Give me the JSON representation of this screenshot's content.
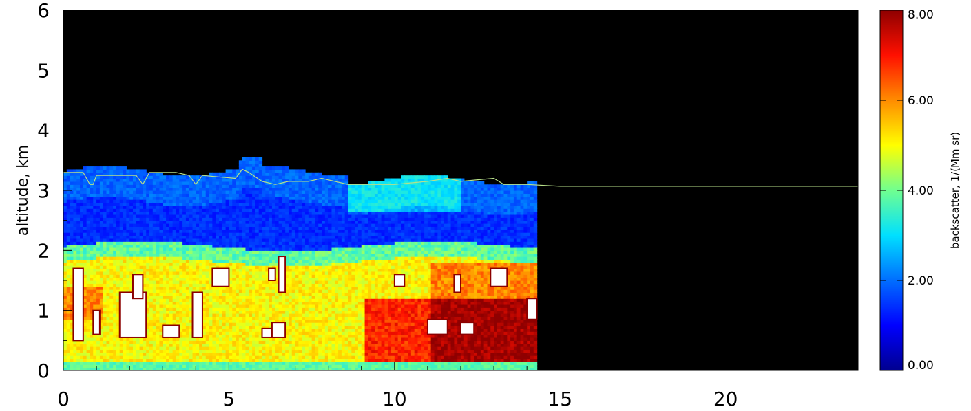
{
  "chart_data": {
    "type": "heatmap",
    "title": "",
    "xlabel": "",
    "ylabel": "altitude,  km",
    "xlim": [
      0,
      24
    ],
    "ylim": [
      0,
      6
    ],
    "x_ticks": [
      0,
      5,
      10,
      15,
      20
    ],
    "x_tick_labels": [
      "0",
      "5",
      "10",
      "15",
      "20"
    ],
    "y_ticks": [
      0,
      1,
      2,
      3,
      4,
      5,
      6
    ],
    "y_tick_labels": [
      "0",
      "1",
      "2",
      "3",
      "4",
      "5",
      "6"
    ],
    "data_extent_x": [
      0,
      14.3
    ],
    "line": {
      "color": "#b8e08a",
      "x": [
        0,
        0.6,
        0.8,
        0.9,
        1.0,
        2.2,
        2.4,
        2.6,
        3.0,
        3.4,
        3.8,
        4.0,
        4.2,
        5.2,
        5.4,
        5.6,
        6.0,
        6.4,
        6.8,
        7.4,
        7.8,
        8.6,
        9.0,
        10.0,
        11.0,
        11.6,
        12.0,
        13.0,
        13.3,
        14.0,
        15.0,
        24.0
      ],
      "y": [
        3.3,
        3.3,
        3.1,
        3.1,
        3.25,
        3.25,
        3.1,
        3.3,
        3.3,
        3.3,
        3.25,
        3.1,
        3.25,
        3.2,
        3.35,
        3.3,
        3.15,
        3.1,
        3.15,
        3.15,
        3.2,
        3.1,
        3.1,
        3.1,
        3.15,
        3.2,
        3.15,
        3.2,
        3.1,
        3.1,
        3.07,
        3.07
      ]
    },
    "colorbar": {
      "label": "backscatter,  1/(Mm sr)",
      "min": 0,
      "max": 8,
      "ticks": [
        "0.00",
        "2.00",
        "4.00",
        "6.00",
        "8.00"
      ],
      "tick_values": [
        0,
        2,
        4,
        6,
        8
      ]
    }
  }
}
